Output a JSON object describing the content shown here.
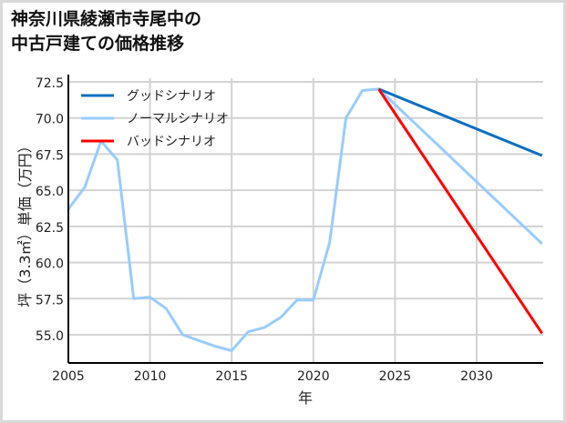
{
  "title_lines": [
    "神奈川県綾瀬市寺尾中の",
    "中古戸建ての価格推移"
  ],
  "chart_data": {
    "type": "line",
    "title": "神奈川県綾瀬市寺尾中の中古戸建ての価格推移",
    "xlabel": "年",
    "ylabel": "坪（3.3㎡）単価（万円）",
    "xlim": [
      2005,
      2034
    ],
    "ylim": [
      53.0,
      72.5
    ],
    "x_ticks": [
      2005,
      2010,
      2015,
      2020,
      2025,
      2030
    ],
    "x_tick_labels": [
      "2005",
      "2010",
      "2015",
      "2020",
      "2025",
      "2030"
    ],
    "y_ticks": [
      55.0,
      57.5,
      60.0,
      62.5,
      65.0,
      67.5,
      70.0,
      72.5
    ],
    "y_tick_labels": [
      "55.0",
      "57.5",
      "60.0",
      "62.5",
      "65.0",
      "67.5",
      "70.0",
      "72.5"
    ],
    "grid": true,
    "legend_position": "upper left",
    "series": [
      {
        "name": "グッドシナリオ",
        "color": "#0a6fc2",
        "x": [
          2024,
          2034
        ],
        "values": [
          72.0,
          67.4
        ]
      },
      {
        "name": "ノーマルシナリオ",
        "color": "#99ccff",
        "x": [
          2005,
          2006,
          2007,
          2008,
          2009,
          2010,
          2011,
          2012,
          2013,
          2014,
          2015,
          2016,
          2017,
          2018,
          2019,
          2020,
          2021,
          2022,
          2023,
          2024,
          2034
        ],
        "values": [
          63.7,
          65.2,
          68.4,
          67.1,
          57.5,
          57.6,
          56.8,
          55.0,
          54.6,
          54.2,
          53.9,
          55.2,
          55.5,
          56.2,
          57.4,
          57.4,
          61.4,
          70.0,
          71.9,
          72.0,
          61.3
        ]
      },
      {
        "name": "バッドシナリオ",
        "color": "#ff0000",
        "x": [
          2024,
          2034
        ],
        "values": [
          72.0,
          55.1
        ]
      }
    ]
  }
}
